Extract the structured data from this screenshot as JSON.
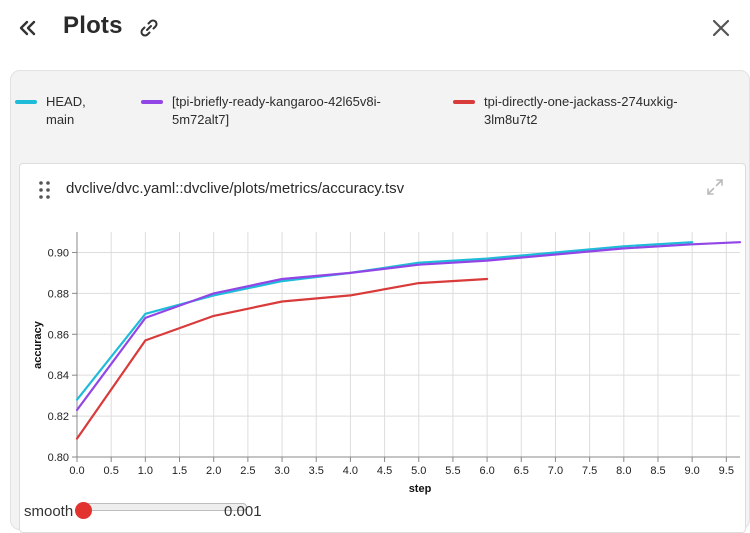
{
  "header": {
    "title": "Plots"
  },
  "legend": [
    {
      "label": "HEAD,\nmain",
      "color": "#1fbcd9"
    },
    {
      "label": "[tpi-briefly-ready-kangaroo-42l65v8i-\n5m72alt7]",
      "color": "#9245e6"
    },
    {
      "label": "tpi-directly-one-jackass-274uxkig-\n3lm8u7t2",
      "color": "#d93a3a"
    }
  ],
  "card": {
    "title": "dvclive/dvc.yaml::dvclive/plots/metrics/accuracy.tsv"
  },
  "smooth": {
    "label": "smooth",
    "value": "0.001",
    "level": 0.001
  },
  "chart_data": {
    "type": "line",
    "xlabel": "step",
    "ylabel": "accuracy",
    "xlim": [
      0,
      9.7
    ],
    "ylim": [
      0.8,
      0.91
    ],
    "xticks": [
      "0.0",
      "0.5",
      "1.0",
      "1.5",
      "2.0",
      "2.5",
      "3.0",
      "3.5",
      "4.0",
      "4.5",
      "5.0",
      "5.5",
      "6.0",
      "6.5",
      "7.0",
      "7.5",
      "8.0",
      "8.5",
      "9.0",
      "9.5"
    ],
    "yticks": [
      "0.80",
      "0.82",
      "0.84",
      "0.86",
      "0.88",
      "0.90"
    ],
    "grid": true,
    "series": [
      {
        "name": "HEAD,\nmain",
        "color": "#1fbcd9",
        "x": [
          0,
          1,
          2,
          3,
          4,
          5,
          6,
          7,
          8,
          9
        ],
        "y": [
          0.828,
          0.87,
          0.879,
          0.886,
          0.89,
          0.895,
          0.897,
          0.9,
          0.903,
          0.905
        ]
      },
      {
        "name": "[tpi-briefly-ready-kangaroo-42l65v8i-\n5m72alt7]",
        "color": "#9245e6",
        "x": [
          0,
          1,
          2,
          3,
          4,
          5,
          6,
          7,
          8,
          9,
          9.7
        ],
        "y": [
          0.823,
          0.868,
          0.88,
          0.887,
          0.89,
          0.894,
          0.896,
          0.899,
          0.902,
          0.904,
          0.905
        ]
      },
      {
        "name": "tpi-directly-one-jackass-274uxkig-\n3lm8u7t2",
        "color": "#d93a3a",
        "x": [
          0,
          1,
          2,
          3,
          4,
          5,
          6
        ],
        "y": [
          0.809,
          0.857,
          0.869,
          0.876,
          0.879,
          0.885,
          0.887
        ]
      }
    ]
  }
}
